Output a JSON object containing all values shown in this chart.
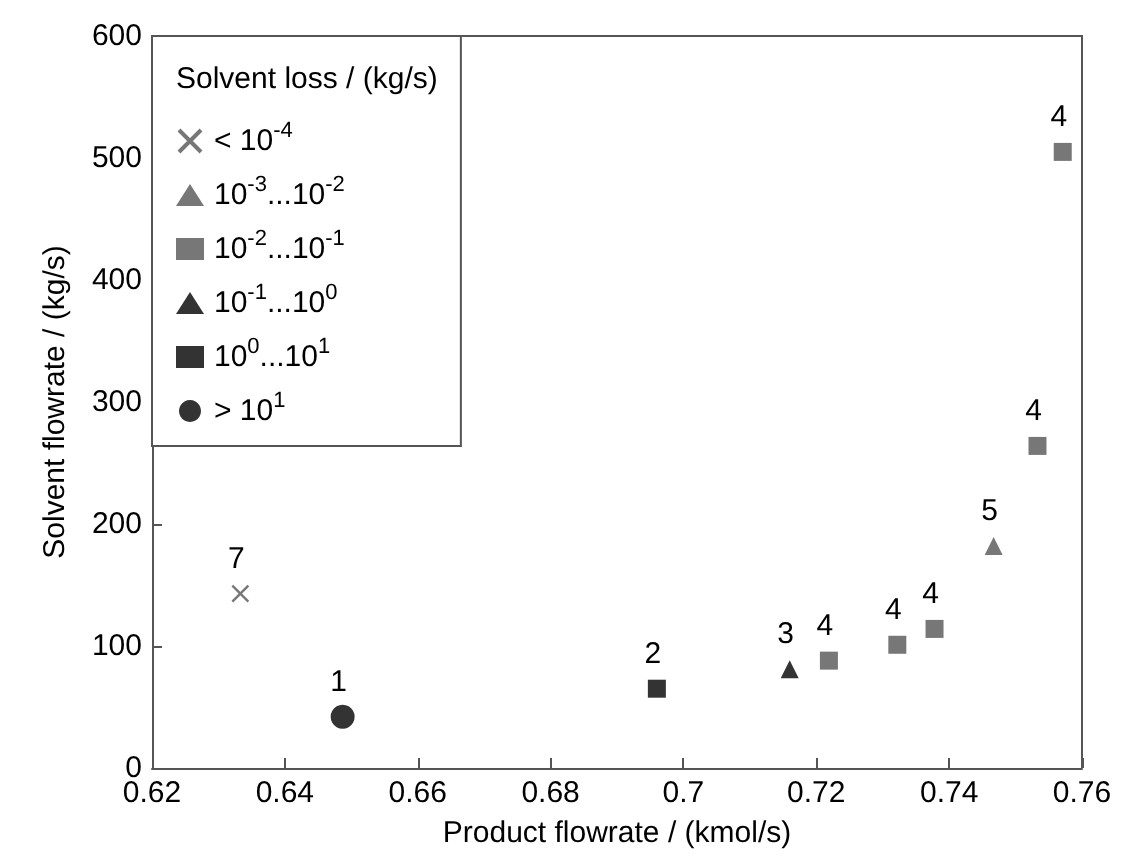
{
  "chart_data": {
    "type": "scatter",
    "xlabel": "Product flowrate / (kmol/s)",
    "ylabel": "Solvent flowrate / (kg/s)",
    "legend_title": "Solvent loss / (kg/s)",
    "legend": "top left",
    "grid": false,
    "xlim": [
      0.62,
      0.76
    ],
    "xticks": [
      0.62,
      0.64,
      0.66,
      0.68,
      0.7,
      0.72,
      0.74,
      0.76
    ],
    "ylim": [
      0,
      600
    ],
    "yticks": [
      0,
      100,
      200,
      300,
      400,
      500,
      600
    ],
    "series": [
      {
        "name": "< 10$^{-4}$",
        "color": "#555555",
        "marker": "cross",
        "x": [
          0.6333
        ],
        "values": [
          143
        ]
      },
      {
        "name": "10$^{-3}$...10$^{-2}$",
        "color": "#555555",
        "marker": "triangle",
        "x": [
          0.7467
        ],
        "values": [
          182
        ]
      },
      {
        "name": "10$^{-2}$...10$^{-1}$",
        "color": "#555555",
        "marker": "square",
        "x": [
          0.7219,
          0.7322,
          0.7378,
          0.7533,
          0.7571
        ],
        "values": [
          88,
          101,
          114,
          264,
          505
        ]
      },
      {
        "name": "10$^{-1}$...10$^{0}$",
        "color": "#000000",
        "marker": "triangle",
        "x": [
          0.716
        ],
        "values": [
          81
        ]
      },
      {
        "name": "10$^{0}$...10$^{1}$",
        "color": "#000000",
        "marker": "square",
        "x": [
          0.696
        ],
        "values": [
          65
        ]
      },
      {
        "name": "> 10$^{1}$",
        "color": "#000000",
        "marker": "circle",
        "x": [
          0.6487
        ],
        "values": [
          42
        ]
      }
    ],
    "annotations": [
      {
        "text": "7",
        "x": 0.6333,
        "y": 143
      },
      {
        "text": "1",
        "x": 0.6487,
        "y": 42
      },
      {
        "text": "2",
        "x": 0.696,
        "y": 65
      },
      {
        "text": "3",
        "x": 0.716,
        "y": 81
      },
      {
        "text": "4",
        "x": 0.7219,
        "y": 88
      },
      {
        "text": "4",
        "x": 0.7322,
        "y": 101
      },
      {
        "text": "4",
        "x": 0.7378,
        "y": 114
      },
      {
        "text": "5",
        "x": 0.7467,
        "y": 182
      },
      {
        "text": "4",
        "x": 0.7533,
        "y": 264
      },
      {
        "text": "4",
        "x": 0.7571,
        "y": 505
      }
    ]
  }
}
